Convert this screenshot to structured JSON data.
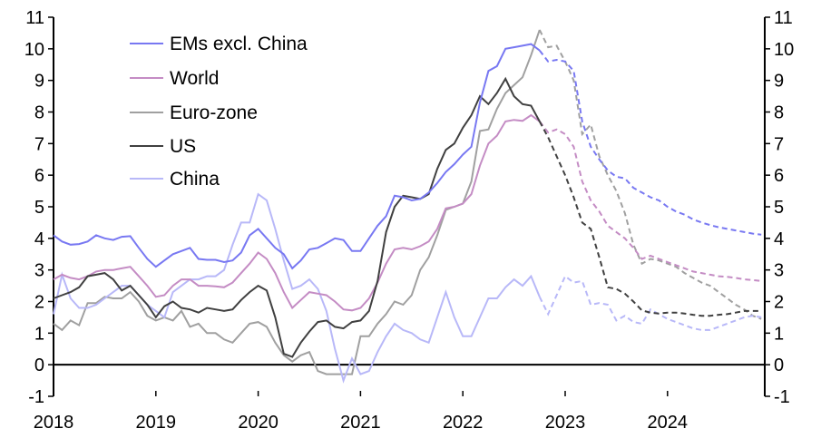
{
  "chart_data": {
    "type": "line",
    "title": "",
    "xlabel": "",
    "ylabel": "",
    "ylim": [
      -1,
      11
    ],
    "yticks": [
      "-1",
      "0",
      "1",
      "2",
      "3",
      "4",
      "5",
      "6",
      "7",
      "8",
      "9",
      "10",
      "11"
    ],
    "xtick_labels": [
      "2018",
      "2019",
      "2020",
      "2021",
      "2022",
      "2023",
      "2024"
    ],
    "x_start": "2018-01",
    "x_end": "2024-12",
    "frequency": "monthly",
    "forecast_start": "2022-11",
    "legend_placement": "top-left",
    "grid": false,
    "dual_y_axis": true,
    "series": [
      {
        "name": "EMs excl. China",
        "color": "#7878f2",
        "values": [
          4.1,
          3.9,
          3.8,
          3.82,
          3.9,
          4.1,
          4.0,
          3.95,
          4.05,
          4.07,
          3.7,
          3.35,
          3.1,
          3.3,
          3.5,
          3.6,
          3.7,
          3.35,
          3.32,
          3.32,
          3.25,
          3.3,
          3.55,
          4.1,
          4.3,
          4.0,
          3.7,
          3.5,
          3.05,
          3.3,
          3.65,
          3.7,
          3.85,
          4.0,
          3.95,
          3.6,
          3.6,
          4.0,
          4.4,
          4.7,
          5.35,
          5.3,
          5.2,
          5.25,
          5.45,
          5.75,
          6.1,
          6.35,
          6.65,
          6.9,
          8.3,
          9.3,
          9.45,
          10.0,
          10.05,
          10.1,
          10.15,
          9.95,
          9.6,
          9.65,
          9.6,
          9.3,
          7.7,
          6.9,
          6.5,
          6.15,
          5.95,
          5.9,
          5.6,
          5.45,
          5.3,
          5.2,
          5.0,
          4.85,
          4.75,
          4.6,
          4.5,
          4.42,
          4.35,
          4.3,
          4.25,
          4.2,
          4.15,
          4.12
        ]
      },
      {
        "name": "World",
        "color": "#c48cc4",
        "values": [
          2.7,
          2.85,
          2.75,
          2.7,
          2.8,
          2.95,
          3.0,
          3.0,
          3.05,
          3.1,
          2.8,
          2.5,
          2.15,
          2.2,
          2.5,
          2.7,
          2.7,
          2.5,
          2.5,
          2.48,
          2.45,
          2.6,
          2.9,
          3.2,
          3.55,
          3.35,
          2.9,
          2.3,
          1.8,
          2.05,
          2.3,
          2.25,
          2.2,
          2.0,
          1.75,
          1.72,
          1.8,
          2.1,
          2.6,
          3.2,
          3.65,
          3.7,
          3.65,
          3.75,
          3.9,
          4.3,
          4.95,
          5.0,
          5.1,
          5.4,
          6.3,
          7.0,
          7.25,
          7.7,
          7.75,
          7.72,
          7.9,
          7.7,
          7.35,
          7.45,
          7.3,
          6.9,
          5.8,
          5.2,
          4.85,
          4.4,
          4.2,
          4.0,
          3.7,
          3.35,
          3.45,
          3.35,
          3.25,
          3.15,
          3.05,
          2.95,
          2.9,
          2.85,
          2.8,
          2.78,
          2.75,
          2.7,
          2.68,
          2.65
        ]
      },
      {
        "name": "Euro-zone",
        "color": "#a0a0a0",
        "values": [
          1.3,
          1.1,
          1.4,
          1.25,
          1.95,
          1.95,
          2.15,
          2.1,
          2.1,
          2.3,
          2.0,
          1.55,
          1.4,
          1.5,
          1.4,
          1.7,
          1.2,
          1.3,
          1.0,
          1.0,
          0.8,
          0.7,
          1.0,
          1.3,
          1.35,
          1.2,
          0.7,
          0.3,
          0.1,
          0.3,
          0.4,
          -0.2,
          -0.3,
          -0.3,
          -0.3,
          -0.3,
          0.9,
          0.9,
          1.3,
          1.6,
          2.0,
          1.9,
          2.2,
          3.0,
          3.4,
          4.1,
          4.9,
          5.0,
          5.1,
          5.8,
          7.4,
          7.45,
          8.1,
          8.6,
          8.85,
          9.1,
          9.8,
          10.6,
          10.05,
          10.1,
          9.6,
          9.0,
          7.3,
          7.6,
          6.6,
          6.0,
          5.5,
          4.8,
          3.8,
          3.2,
          3.35,
          3.3,
          3.2,
          3.1,
          2.9,
          2.75,
          2.6,
          2.5,
          2.3,
          2.1,
          1.9,
          1.75,
          1.55,
          1.45
        ]
      },
      {
        "name": "US",
        "color": "#404040",
        "values": [
          2.1,
          2.2,
          2.3,
          2.45,
          2.8,
          2.85,
          2.9,
          2.7,
          2.35,
          2.5,
          2.2,
          1.9,
          1.5,
          1.85,
          2.0,
          1.8,
          1.75,
          1.65,
          1.8,
          1.75,
          1.7,
          1.75,
          2.05,
          2.3,
          2.5,
          2.35,
          1.5,
          0.35,
          0.25,
          0.7,
          1.05,
          1.35,
          1.4,
          1.2,
          1.15,
          1.35,
          1.4,
          1.7,
          2.65,
          4.2,
          5.0,
          5.35,
          5.3,
          5.25,
          5.4,
          6.2,
          6.8,
          7.0,
          7.5,
          7.9,
          8.5,
          8.25,
          8.6,
          9.05,
          8.5,
          8.25,
          8.2,
          7.7,
          7.2,
          6.6,
          6.0,
          5.3,
          4.5,
          4.3,
          3.4,
          2.45,
          2.4,
          2.25,
          2.0,
          1.72,
          1.65,
          1.62,
          1.65,
          1.65,
          1.62,
          1.58,
          1.55,
          1.55,
          1.58,
          1.6,
          1.65,
          1.7,
          1.7,
          1.7
        ]
      },
      {
        "name": "China",
        "color": "#b8b8f8",
        "values": [
          1.6,
          2.85,
          2.1,
          1.8,
          1.8,
          1.9,
          2.1,
          2.3,
          2.5,
          2.5,
          2.2,
          1.9,
          1.7,
          1.5,
          2.3,
          2.5,
          2.7,
          2.7,
          2.8,
          2.8,
          3.0,
          3.8,
          4.5,
          4.5,
          5.4,
          5.2,
          4.3,
          3.3,
          2.4,
          2.5,
          2.7,
          2.4,
          1.7,
          0.5,
          -0.5,
          0.2,
          -0.3,
          -0.2,
          0.4,
          0.9,
          1.3,
          1.1,
          1.0,
          0.8,
          0.7,
          1.5,
          2.3,
          1.5,
          0.9,
          0.9,
          1.5,
          2.1,
          2.1,
          2.45,
          2.7,
          2.5,
          2.8,
          2.15,
          1.6,
          2.2,
          2.8,
          2.6,
          2.65,
          1.9,
          1.95,
          1.9,
          1.4,
          1.55,
          1.35,
          1.3,
          1.75,
          1.6,
          1.45,
          1.35,
          1.25,
          1.15,
          1.1,
          1.1,
          1.2,
          1.3,
          1.4,
          1.5,
          1.55,
          1.5
        ]
      }
    ]
  }
}
